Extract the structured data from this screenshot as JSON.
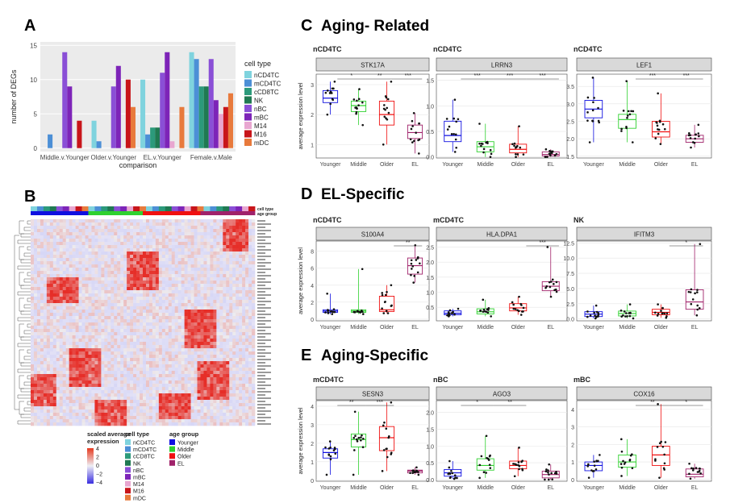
{
  "panels": {
    "A": "A",
    "B": "B",
    "C": "C",
    "D": "D",
    "E": "E",
    "C_title": "Aging- Related",
    "D_title": "EL-Specific",
    "E_title": "Aging-Specific"
  },
  "colors": {
    "cell_types": [
      "#7fd3de",
      "#4c8fd6",
      "#2c9a7b",
      "#1f7a52",
      "#8a4fd6",
      "#7d24b8",
      "#e8a6d0",
      "#c8151a",
      "#e87a3c"
    ],
    "age_groups": [
      "#1010e0",
      "#2fd12f",
      "#f01010",
      "#a0226a"
    ]
  },
  "chart_data": [
    {
      "type": "bar",
      "panel": "A",
      "title": "",
      "xlabel": "comparison",
      "ylabel": "number of DEGs",
      "ylim": [
        0,
        15
      ],
      "yticks": [
        "0",
        "5",
        "10",
        "15"
      ],
      "categories": [
        "Middle.v.Younger",
        "Older.v.Younger",
        "EL.v.Younger",
        "Female.v.Male"
      ],
      "legend_title": "cell type",
      "series": [
        {
          "name": "nCD4TC",
          "values": [
            0,
            4,
            10,
            14
          ]
        },
        {
          "name": "mCD4TC",
          "values": [
            2,
            1,
            2,
            13
          ]
        },
        {
          "name": "cCD8TC",
          "values": [
            0,
            0,
            3,
            9
          ]
        },
        {
          "name": "NK",
          "values": [
            0,
            0,
            3,
            9
          ]
        },
        {
          "name": "nBC",
          "values": [
            14,
            9,
            11,
            13
          ]
        },
        {
          "name": "mBC",
          "values": [
            9,
            12,
            14,
            7
          ]
        },
        {
          "name": "M14",
          "values": [
            0,
            0,
            1,
            5
          ]
        },
        {
          "name": "M16",
          "values": [
            4,
            10,
            0,
            6
          ]
        },
        {
          "name": "mDC",
          "values": [
            0,
            6,
            6,
            8
          ]
        }
      ]
    },
    {
      "type": "heatmap",
      "panel": "B",
      "annotation_rows": [
        "cell type",
        "age group"
      ],
      "legend": {
        "scale_title": "scaled average expression",
        "scale_ticks": [
          "4",
          "2",
          "0",
          "−2",
          "−4"
        ],
        "cell_type_title": "cell type",
        "cell_types": [
          "nCD4TC",
          "mCD4TC",
          "cCD8TC",
          "NK",
          "nBC",
          "mBC",
          "M14",
          "M16",
          "mDC"
        ],
        "age_group_title": "age group",
        "age_groups": [
          "Younger",
          "Middle",
          "Older",
          "EL"
        ]
      }
    },
    {
      "type": "box",
      "panel": "C",
      "group": "Aging- Related",
      "celltype": "nCD4TC",
      "gene": "STK17A",
      "ylabel": "average expression level",
      "ylim": [
        0.55,
        3.35
      ],
      "yticks": [
        1,
        2,
        3
      ],
      "categories": [
        "Younger",
        "Middle",
        "Older",
        "EL"
      ],
      "quartiles": [
        [
          2.4,
          2.55,
          2.8
        ],
        [
          2.1,
          2.3,
          2.45
        ],
        [
          1.65,
          2.0,
          2.45
        ],
        [
          1.2,
          1.4,
          1.65
        ]
      ],
      "whiskers": [
        [
          2.0,
          3.1
        ],
        [
          1.65,
          2.85
        ],
        [
          1.0,
          3.1
        ],
        [
          0.7,
          2.05
        ]
      ],
      "significance": [
        "",
        "*",
        "**",
        "***"
      ]
    },
    {
      "type": "box",
      "panel": "C",
      "group": "Aging- Related",
      "celltype": "nCD4TC",
      "gene": "LRRN3",
      "ylabel": "",
      "ylim": [
        -0.02,
        1.62
      ],
      "yticks": [
        0.0,
        0.5,
        1.0,
        1.5
      ],
      "categories": [
        "Younger",
        "Middle",
        "Older",
        "EL"
      ],
      "quartiles": [
        [
          0.3,
          0.42,
          0.7
        ],
        [
          0.1,
          0.2,
          0.3
        ],
        [
          0.08,
          0.15,
          0.25
        ],
        [
          0.02,
          0.05,
          0.1
        ]
      ],
      "whiskers": [
        [
          0.1,
          1.12
        ],
        [
          0.0,
          0.65
        ],
        [
          0.0,
          0.6
        ],
        [
          0.0,
          0.15
        ]
      ],
      "significance": [
        "",
        "***",
        "***",
        "***"
      ]
    },
    {
      "type": "box",
      "panel": "C",
      "group": "Aging- Related",
      "celltype": "nCD4TC",
      "gene": "LEF1",
      "ylabel": "",
      "ylim": [
        1.45,
        3.85
      ],
      "yticks": [
        1.5,
        2.0,
        2.5,
        3.0,
        3.5
      ],
      "categories": [
        "Younger",
        "Middle",
        "Older",
        "EL"
      ],
      "quartiles": [
        [
          2.6,
          2.85,
          3.1
        ],
        [
          2.3,
          2.55,
          2.7
        ],
        [
          2.05,
          2.2,
          2.5
        ],
        [
          1.9,
          2.0,
          2.1
        ]
      ],
      "whiskers": [
        [
          1.9,
          3.75
        ],
        [
          1.9,
          3.65
        ],
        [
          1.85,
          3.3
        ],
        [
          1.75,
          2.4
        ]
      ],
      "significance": [
        "",
        "",
        "***",
        "***"
      ]
    },
    {
      "type": "box",
      "panel": "D",
      "group": "EL-Specific",
      "celltype": "nCD4TC",
      "gene": "S100A4",
      "ylabel": "average expression level",
      "ylim": [
        -0.2,
        9.2
      ],
      "yticks": [
        0,
        2,
        4,
        6,
        8
      ],
      "categories": [
        "Younger",
        "Middle",
        "Older",
        "EL"
      ],
      "quartiles": [
        [
          0.8,
          0.95,
          1.1
        ],
        [
          0.8,
          0.95,
          1.1
        ],
        [
          0.9,
          1.1,
          2.7
        ],
        [
          5.3,
          6.3,
          7.2
        ]
      ],
      "whiskers": [
        [
          0.6,
          3.0
        ],
        [
          0.6,
          5.9
        ],
        [
          0.7,
          4.0
        ],
        [
          4.3,
          8.7
        ]
      ],
      "significance": [
        "",
        "",
        "",
        "**"
      ]
    },
    {
      "type": "box",
      "panel": "D",
      "group": "EL-Specific",
      "celltype": "mCD4TC",
      "gene": "HLA.DPA1",
      "ylabel": "",
      "ylim": [
        0.05,
        2.7
      ],
      "yticks": [
        0.5,
        1.0,
        1.5,
        2.0,
        2.5
      ],
      "categories": [
        "Younger",
        "Middle",
        "Older",
        "EL"
      ],
      "quartiles": [
        [
          0.25,
          0.3,
          0.38
        ],
        [
          0.28,
          0.35,
          0.45
        ],
        [
          0.38,
          0.48,
          0.62
        ],
        [
          1.05,
          1.2,
          1.35
        ]
      ],
      "whiskers": [
        [
          0.2,
          0.45
        ],
        [
          0.2,
          0.75
        ],
        [
          0.25,
          0.85
        ],
        [
          0.85,
          2.5
        ]
      ],
      "significance": [
        "",
        "",
        "",
        "***"
      ]
    },
    {
      "type": "box",
      "panel": "D",
      "group": "EL-Specific",
      "celltype": "NK",
      "gene": "IFITM3",
      "ylabel": "",
      "ylim": [
        -0.3,
        12.8
      ],
      "yticks": [
        0.0,
        2.5,
        5.0,
        7.5,
        10.0,
        12.5
      ],
      "categories": [
        "Younger",
        "Middle",
        "Older",
        "EL"
      ],
      "quartiles": [
        [
          0.4,
          0.8,
          1.2
        ],
        [
          0.5,
          0.9,
          1.3
        ],
        [
          0.7,
          1.1,
          1.6
        ],
        [
          1.6,
          2.8,
          4.8
        ]
      ],
      "whiskers": [
        [
          0.1,
          2.2
        ],
        [
          0.1,
          2.4
        ],
        [
          0.2,
          2.4
        ],
        [
          0.6,
          12.3
        ]
      ],
      "significance": [
        "",
        "",
        "",
        "*"
      ]
    },
    {
      "type": "box",
      "panel": "E",
      "group": "Aging-Specific",
      "celltype": "mCD4TC",
      "gene": "SESN3",
      "ylabel": "average expression level",
      "ylim": [
        -0.05,
        4.3
      ],
      "yticks": [
        0,
        1,
        2,
        3,
        4
      ],
      "categories": [
        "Younger",
        "Middle",
        "Older",
        "EL"
      ],
      "quartiles": [
        [
          1.2,
          1.5,
          1.7
        ],
        [
          1.8,
          2.2,
          2.5
        ],
        [
          1.6,
          2.3,
          2.9
        ],
        [
          0.4,
          0.5,
          0.55
        ]
      ],
      "whiskers": [
        [
          0.3,
          2.1
        ],
        [
          0.3,
          3.7
        ],
        [
          0.5,
          4.2
        ],
        [
          0.3,
          0.7
        ]
      ],
      "significance": [
        "",
        "**",
        "***",
        ""
      ]
    },
    {
      "type": "box",
      "panel": "E",
      "group": "Aging-Specific",
      "celltype": "nBC",
      "gene": "AGO3",
      "ylabel": "",
      "ylim": [
        -0.05,
        2.35
      ],
      "yticks": [
        0.0,
        0.5,
        1.0,
        1.5,
        2.0
      ],
      "categories": [
        "Younger",
        "Middle",
        "Older",
        "EL"
      ],
      "quartiles": [
        [
          0.1,
          0.2,
          0.3
        ],
        [
          0.28,
          0.42,
          0.62
        ],
        [
          0.32,
          0.42,
          0.55
        ],
        [
          0.05,
          0.15,
          0.25
        ]
      ],
      "whiskers": [
        [
          0.02,
          0.55
        ],
        [
          0.05,
          1.3
        ],
        [
          0.1,
          0.95
        ],
        [
          0.0,
          0.45
        ]
      ],
      "significance": [
        "",
        "*",
        "**",
        ""
      ]
    },
    {
      "type": "box",
      "panel": "E",
      "group": "Aging-Specific",
      "celltype": "mBC",
      "gene": "COX16",
      "ylabel": "",
      "ylim": [
        -0.1,
        4.5
      ],
      "yticks": [
        0,
        1,
        2,
        3,
        4
      ],
      "categories": [
        "Younger",
        "Middle",
        "Older",
        "EL"
      ],
      "quartiles": [
        [
          0.5,
          0.8,
          1.0
        ],
        [
          0.7,
          1.0,
          1.4
        ],
        [
          0.8,
          1.4,
          1.9
        ],
        [
          0.15,
          0.3,
          0.6
        ]
      ],
      "whiskers": [
        [
          0.1,
          1.4
        ],
        [
          0.2,
          2.3
        ],
        [
          0.1,
          4.3
        ],
        [
          0.05,
          0.9
        ]
      ],
      "significance": [
        "",
        "",
        "**",
        "*"
      ]
    }
  ]
}
